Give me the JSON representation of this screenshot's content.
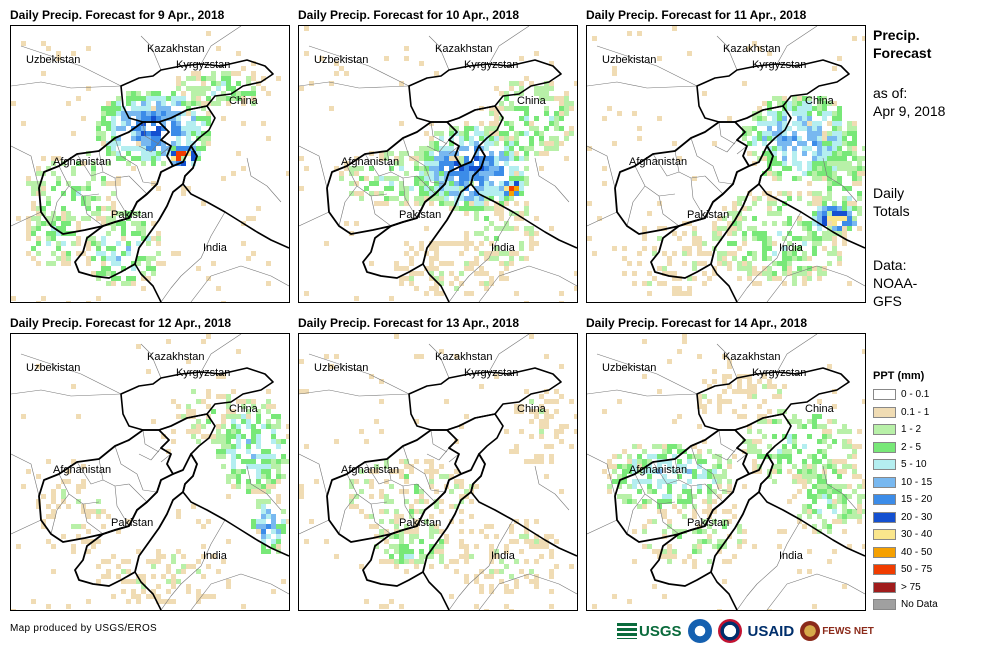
{
  "panels": [
    {
      "title": "Daily Precip. Forecast for 9 Apr., 2018"
    },
    {
      "title": "Daily Precip. Forecast for 10 Apr., 2018"
    },
    {
      "title": "Daily Precip. Forecast for 11 Apr., 2018"
    },
    {
      "title": "Daily Precip. Forecast for 12 Apr., 2018"
    },
    {
      "title": "Daily Precip. Forecast for 13 Apr., 2018"
    },
    {
      "title": "Daily Precip. Forecast for 14 Apr., 2018"
    }
  ],
  "map_labels": {
    "kazakhstan": "Kazakhstan",
    "uzbekistan": "Uzbekistan",
    "kyrgyzstan": "Kyrgyzstan",
    "china": "China",
    "afghanistan": "Afghanistan",
    "pakistan": "Pakistan",
    "india": "India"
  },
  "sidebar": {
    "title": "Precip. Forecast",
    "as_of_label": "as of:",
    "as_of_date": "Apr 9, 2018",
    "totals": "Daily Totals",
    "data_source_label": "Data:",
    "data_source": "NOAA-GFS"
  },
  "legend": {
    "title": "PPT (mm)",
    "items": [
      {
        "label": "0 - 0.1",
        "color": "#ffffff"
      },
      {
        "label": "0.1 - 1",
        "color": "#f0dcb4"
      },
      {
        "label": "1 - 2",
        "color": "#b8f0a8"
      },
      {
        "label": "2 - 5",
        "color": "#78e878"
      },
      {
        "label": "5 - 10",
        "color": "#b4eef0"
      },
      {
        "label": "10 - 15",
        "color": "#78b8f0"
      },
      {
        "label": "15 - 20",
        "color": "#3c8ce8"
      },
      {
        "label": "20 - 30",
        "color": "#1450d0"
      },
      {
        "label": "30 - 40",
        "color": "#fae68c"
      },
      {
        "label": "40 - 50",
        "color": "#f5a000"
      },
      {
        "label": "50 - 75",
        "color": "#f03c00"
      },
      {
        "label": "> 75",
        "color": "#a01c1c"
      },
      {
        "label": "No Data",
        "color": "#a0a0a0"
      }
    ]
  },
  "footer": {
    "credit": "Map produced by USGS/EROS",
    "logos": [
      "USGS",
      "NOAA",
      "USAID",
      "FEWS NET"
    ]
  }
}
